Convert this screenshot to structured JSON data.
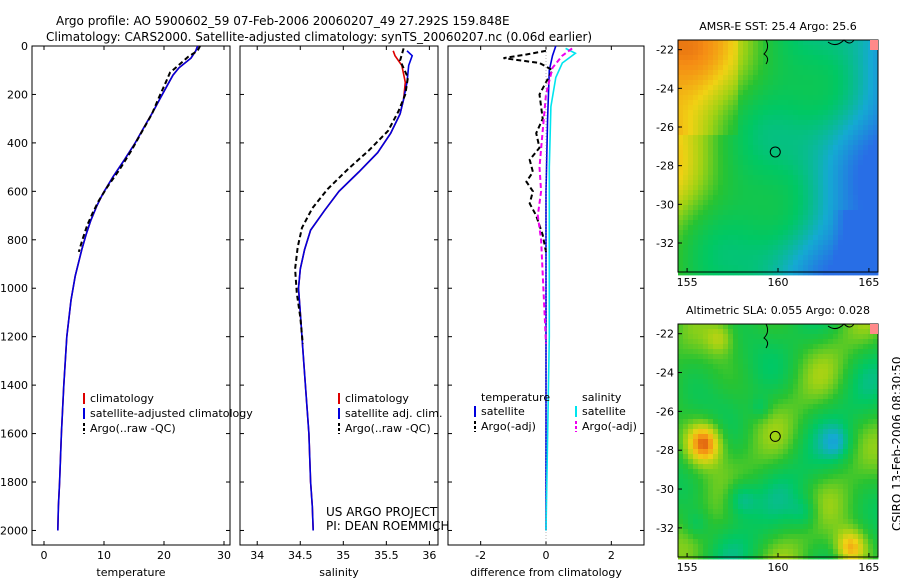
{
  "header": {
    "line1": "Argo profile: AO 5900602_59 07-Feb-2006 20060207_49 27.292S 159.848E",
    "line2": "Climatology: CARS2000. Satellite-adjusted climatology: synTS_20060207.nc (0.06d earlier)"
  },
  "credit": {
    "line1": "US ARGO PROJECT",
    "line2": "PI: DEAN ROEMMICH"
  },
  "stamp": "CSIRO 13-Feb-2006 08:30:50",
  "colors": {
    "red": "#dd0000",
    "blue": "#0000dd",
    "black": "#000000",
    "cyan": "#00e5ee",
    "magenta": "#ee00ee"
  },
  "chart_data": [
    {
      "type": "line",
      "xlabel": "temperature",
      "ylabel": "",
      "xlim": [
        -2,
        31
      ],
      "ylim": [
        2060,
        0
      ],
      "xticks": [
        0,
        10,
        20,
        30
      ],
      "xticklabels": [
        "0",
        "10",
        "20",
        "30"
      ],
      "yticks": [
        0,
        200,
        400,
        600,
        800,
        1000,
        1200,
        1400,
        1600,
        1800,
        2000
      ],
      "yticklabels": [
        "0",
        "200",
        "400",
        "600",
        "800",
        "1000",
        "1200",
        "1400",
        "1600",
        "1800",
        "2000"
      ],
      "legend": [
        "climatology",
        "satellite-adjusted climatology",
        "Argo(..raw -QC)"
      ],
      "series": [
        {
          "name": "climatology",
          "color": "red",
          "dash": false,
          "x": [
            25.6,
            25.3,
            24.5,
            22.5,
            21.5,
            20.6,
            19.5,
            18.2,
            16.8,
            15.2,
            13.4,
            11.5,
            9.8,
            8.8,
            7.8,
            7.0,
            6.3,
            5.2,
            4.5,
            3.8,
            3.3,
            2.9,
            2.6,
            2.4,
            2.3
          ],
          "y": [
            0,
            20,
            50,
            90,
            120,
            160,
            210,
            270,
            330,
            400,
            470,
            540,
            610,
            660,
            720,
            780,
            840,
            950,
            1050,
            1200,
            1400,
            1600,
            1800,
            1900,
            2000
          ]
        },
        {
          "name": "satellite-adjusted climatology",
          "color": "blue",
          "dash": false,
          "x": [
            25.6,
            25.3,
            24.5,
            22.5,
            21.5,
            20.6,
            19.5,
            18.2,
            16.8,
            15.2,
            13.4,
            11.5,
            9.8,
            8.8,
            7.8,
            7.0,
            6.3,
            5.2,
            4.5,
            3.8,
            3.3,
            2.9,
            2.6,
            2.4,
            2.3
          ],
          "y": [
            0,
            20,
            50,
            90,
            120,
            160,
            210,
            270,
            330,
            400,
            470,
            540,
            610,
            660,
            720,
            780,
            840,
            950,
            1050,
            1200,
            1400,
            1600,
            1800,
            1900,
            2000
          ]
        },
        {
          "name": "Argo(..raw -QC)",
          "color": "black",
          "dash": true,
          "x": [
            26.0,
            25.6,
            24.0,
            22.4,
            21.0,
            20.3,
            19.2,
            18.0,
            16.4,
            14.6,
            12.6,
            10.6,
            9.1,
            8.1,
            7.2,
            6.4,
            5.8
          ],
          "y": [
            0,
            20,
            45,
            80,
            110,
            150,
            210,
            280,
            350,
            430,
            510,
            580,
            640,
            690,
            740,
            800,
            850
          ]
        }
      ]
    },
    {
      "type": "line",
      "xlabel": "salinity",
      "ylabel": "",
      "xlim": [
        33.8,
        36.1
      ],
      "ylim": [
        2060,
        0
      ],
      "xticks": [
        34,
        34.5,
        35,
        35.5,
        36
      ],
      "xticklabels": [
        "34",
        "34.5",
        "35",
        "35.5",
        "36"
      ],
      "legend": [
        "climatology",
        "satellite adj. clim.",
        "Argo(..raw -QC)"
      ],
      "series": [
        {
          "name": "climatology",
          "color": "red",
          "dash": false,
          "x": [
            35.58,
            35.6,
            35.68,
            35.72,
            35.7,
            35.66,
            35.55,
            35.4,
            35.18,
            34.95,
            34.78,
            34.62,
            34.55,
            34.5,
            34.48,
            34.5,
            34.53,
            34.56,
            34.6,
            34.62,
            34.64,
            34.65
          ],
          "y": [
            20,
            40,
            80,
            150,
            220,
            280,
            360,
            440,
            520,
            600,
            680,
            760,
            840,
            920,
            1000,
            1100,
            1250,
            1400,
            1600,
            1800,
            1900,
            2000
          ]
        },
        {
          "name": "satellite adj. clim.",
          "color": "blue",
          "dash": false,
          "x": [
            35.74,
            35.8,
            35.76,
            35.74,
            35.7,
            35.66,
            35.55,
            35.4,
            35.18,
            34.95,
            34.78,
            34.62,
            34.55,
            34.5,
            34.48,
            34.5,
            34.53,
            34.56,
            34.6,
            34.62,
            34.64,
            34.65
          ],
          "y": [
            20,
            40,
            80,
            150,
            220,
            280,
            360,
            440,
            520,
            600,
            680,
            760,
            840,
            920,
            1000,
            1100,
            1250,
            1400,
            1600,
            1800,
            1900,
            2000
          ]
        },
        {
          "name": "Argo(..raw -QC)",
          "color": "black",
          "dash": true,
          "x": [
            35.7,
            35.66,
            35.75,
            35.72,
            35.64,
            35.52,
            35.3,
            35.05,
            34.82,
            34.64,
            34.52,
            34.47,
            34.44,
            34.46,
            34.5,
            34.53
          ],
          "y": [
            10,
            60,
            130,
            200,
            270,
            350,
            430,
            510,
            590,
            670,
            750,
            830,
            920,
            1020,
            1120,
            1230
          ]
        }
      ]
    },
    {
      "type": "line",
      "xlabel": "difference from climatology",
      "ylabel": "",
      "xlim": [
        -3,
        3
      ],
      "ylim": [
        2060,
        0
      ],
      "xticks": [
        -2,
        0,
        2
      ],
      "xticklabels": [
        "-2",
        "0",
        "2"
      ],
      "legend_titles": [
        "temperature",
        "salinity"
      ],
      "legend": [
        "satellite",
        "Argo(-adj)",
        "satellite",
        "Argo(-adj)"
      ],
      "series": [
        {
          "name": "temperature satellite",
          "color": "blue",
          "dash": false,
          "x": [
            0.3,
            0.2,
            0.1,
            0.05,
            0.0,
            0.0,
            0.0,
            0.0
          ],
          "y": [
            0,
            40,
            100,
            300,
            600,
            1000,
            1500,
            2000
          ]
        },
        {
          "name": "temperature Argo(-adj)",
          "color": "black",
          "dash": true,
          "x": [
            0.0,
            -0.6,
            -1.3,
            -0.2,
            0.2,
            -0.2,
            -0.1,
            -0.3,
            -0.2,
            -0.5,
            -0.4,
            -0.6,
            -0.4,
            -0.5,
            -0.3,
            -0.1,
            0.0
          ],
          "y": [
            20,
            35,
            50,
            70,
            100,
            200,
            300,
            360,
            420,
            470,
            520,
            560,
            600,
            650,
            700,
            780,
            850
          ]
        },
        {
          "name": "salinity satellite",
          "color": "cyan",
          "dash": false,
          "x": [
            0.6,
            0.9,
            0.5,
            0.3,
            0.15,
            0.1,
            0.1,
            0.1,
            0.0
          ],
          "y": [
            10,
            30,
            70,
            130,
            250,
            500,
            800,
            1200,
            2000
          ]
        },
        {
          "name": "salinity Argo(-adj)",
          "color": "magenta",
          "dash": true,
          "x": [
            0.8,
            0.5,
            0.2,
            0.0,
            -0.1,
            -0.2,
            -0.15,
            -0.25,
            -0.15,
            0.0
          ],
          "y": [
            10,
            40,
            90,
            200,
            350,
            500,
            600,
            700,
            800,
            1230
          ]
        }
      ]
    },
    {
      "type": "heatmap",
      "title": "AMSR-E SST: 25.4 Argo: 25.6",
      "xlim": [
        154.5,
        165.5
      ],
      "ylim": [
        -33.5,
        -21.5
      ],
      "xticks": [
        155,
        160,
        165
      ],
      "xticklabels": [
        "155",
        "160",
        "165"
      ],
      "yticks": [
        -22,
        -24,
        -26,
        -28,
        -30,
        -32
      ],
      "yticklabels": [
        "-22",
        "-24",
        "-26",
        "-28",
        "-30",
        "-32"
      ],
      "marker": [
        159.85,
        -27.29
      ]
    },
    {
      "type": "heatmap",
      "title": "Altimetric SLA: 0.055 Argo: 0.028",
      "xlim": [
        154.5,
        165.5
      ],
      "ylim": [
        -33.5,
        -21.5
      ],
      "xticks": [
        155,
        160,
        165
      ],
      "xticklabels": [
        "155",
        "160",
        "165"
      ],
      "yticks": [
        -22,
        -24,
        -26,
        -28,
        -30,
        -32
      ],
      "yticklabels": [
        "-22",
        "-24",
        "-26",
        "-28",
        "-30",
        "-32"
      ],
      "marker": [
        159.85,
        -27.29
      ]
    }
  ]
}
